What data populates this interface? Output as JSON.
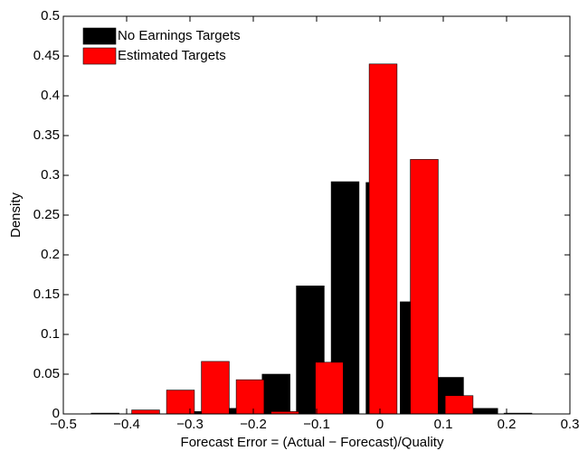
{
  "chart_data": {
    "type": "bar",
    "xlabel": "Forecast Error = (Actual − Forecast)/Quality",
    "ylabel": "Density",
    "xlim": [
      -0.5,
      0.3
    ],
    "ylim": [
      0,
      0.5
    ],
    "bar_width": 0.044,
    "legend": "upper left",
    "xticks": [
      {
        "value": -0.5,
        "label": "−0.5"
      },
      {
        "value": -0.4,
        "label": "−0.4"
      },
      {
        "value": -0.3,
        "label": "−0.3"
      },
      {
        "value": -0.2,
        "label": "−0.2"
      },
      {
        "value": -0.1,
        "label": "−0.1"
      },
      0,
      0.1,
      0.2,
      0.3
    ],
    "yticks": [
      0,
      0.05,
      0.1,
      0.15,
      0.2,
      0.25,
      0.3,
      0.35,
      0.4,
      0.45,
      0.5
    ],
    "series": [
      {
        "name": "No Earnings Targets",
        "color": "#000000",
        "x": [
          -0.434,
          -0.272,
          -0.218,
          -0.164,
          -0.11,
          -0.055,
          0,
          0.054,
          0.11,
          0.164,
          0.218
        ],
        "values": [
          0.001,
          0.003,
          0.007,
          0.05,
          0.161,
          0.292,
          0.291,
          0.141,
          0.046,
          0.007,
          0.001
        ]
      },
      {
        "name": "Estimated Targets",
        "color": "#ff0000",
        "x": [
          -0.37,
          -0.315,
          -0.26,
          -0.205,
          -0.15,
          -0.08,
          0.005,
          0.07,
          0.125
        ],
        "values": [
          0.005,
          0.03,
          0.066,
          0.043,
          0.003,
          0.065,
          0.44,
          0.32,
          0.023
        ]
      }
    ]
  }
}
